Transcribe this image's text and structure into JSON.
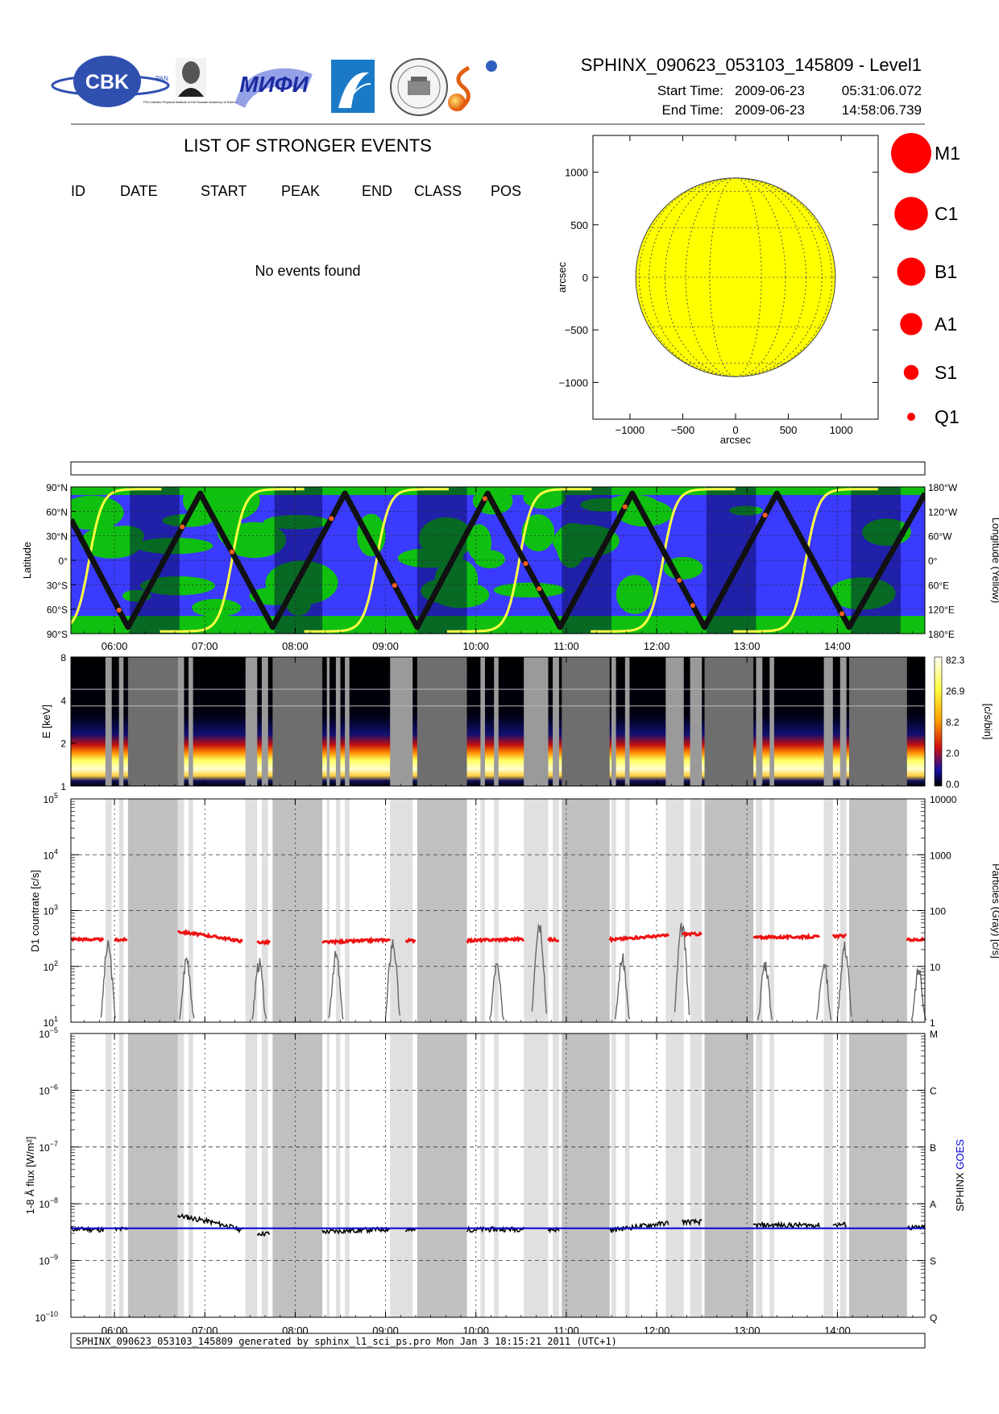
{
  "header": {
    "file_title": "SPHINX_090623_053103_145809 - Level1",
    "start_label": "Start Time:",
    "start_date": "2009-06-23",
    "start_time": "05:31:06.072",
    "end_label": "End Time:",
    "end_date": "2009-06-23",
    "end_time": "14:58:06.739",
    "logos": [
      {
        "icon": "cbk-logo",
        "text": "CBK",
        "small_text": "PAN"
      },
      {
        "icon": "lebedev-portrait-logo",
        "caption": "P.N.Lebedev Physical Institute of the Russian Academy of Science"
      },
      {
        "icon": "mifi-logo",
        "text": "МИФИ"
      },
      {
        "icon": "blue-arc-logo"
      },
      {
        "icon": "seal-logo"
      },
      {
        "icon": "sun-swirl-logo"
      }
    ]
  },
  "events": {
    "title": "LIST OF STRONGER EVENTS",
    "columns": [
      "ID",
      "DATE",
      "START",
      "PEAK",
      "END",
      "CLASS",
      "POS"
    ],
    "rows": [],
    "empty_message": "No events found"
  },
  "solar_disk": {
    "xlabel": "arcsec",
    "ylabel": "arcsec",
    "xticks": [
      -1000,
      -500,
      0,
      500,
      1000
    ],
    "yticks": [
      1000,
      500,
      0,
      -500,
      -1000
    ],
    "xlim": [
      -1350,
      1350
    ],
    "ylim": [
      -1350,
      1350
    ],
    "disk_radius_arcsec": 945,
    "disk_color": "#ffff00",
    "grid": "dotted lat/lon"
  },
  "size_legend": [
    {
      "label": "M1",
      "size": 1.0
    },
    {
      "label": "C1",
      "size": 0.83
    },
    {
      "label": "B1",
      "size": 0.7
    },
    {
      "label": "A1",
      "size": 0.55
    },
    {
      "label": "S1",
      "size": 0.37
    },
    {
      "label": "Q1",
      "size": 0.2
    }
  ],
  "time_axis": {
    "start_hour": 5.518,
    "end_hour": 14.968,
    "ticks": [
      "06:00",
      "07:00",
      "08:00",
      "09:00",
      "10:00",
      "11:00",
      "12:00",
      "13:00",
      "14:00"
    ],
    "tick_hours": [
      6,
      7,
      8,
      9,
      10,
      11,
      12,
      13,
      14
    ]
  },
  "orbit_panel": {
    "ylabel_left": "Latitude",
    "ylabel_right": "Longitude (Yellow)",
    "left_ticks": [
      "90°N",
      "60°N",
      "30°N",
      "0°",
      "30°S",
      "60°S",
      "90°S"
    ],
    "right_ticks": [
      "180°W",
      "120°W",
      "60°W",
      "0°",
      "60°E",
      "120°E",
      "180°E"
    ],
    "colors": {
      "ocean": "#3b3bff",
      "land": "#10c010",
      "night": "#1a1a8a",
      "track": "#111111",
      "longitude": "#ffff44"
    },
    "latitude_turns": [
      {
        "t": 5.52,
        "lat": 50
      },
      {
        "t": 6.15,
        "lat": -82
      },
      {
        "t": 6.95,
        "lat": 82
      },
      {
        "t": 7.75,
        "lat": -82
      },
      {
        "t": 8.55,
        "lat": 82
      },
      {
        "t": 9.35,
        "lat": -82
      },
      {
        "t": 10.13,
        "lat": 82
      },
      {
        "t": 10.93,
        "lat": -82
      },
      {
        "t": 11.73,
        "lat": 82
      },
      {
        "t": 12.53,
        "lat": -82
      },
      {
        "t": 13.33,
        "lat": 82
      },
      {
        "t": 14.13,
        "lat": -82
      },
      {
        "t": 14.97,
        "lat": 82
      }
    ],
    "longitude_wraps": [
      5.72,
      7.3,
      8.9,
      10.48,
      12.07,
      13.65
    ],
    "night_segments": [
      [
        6.17,
        6.72
      ],
      [
        7.77,
        8.3
      ],
      [
        9.35,
        9.9
      ],
      [
        10.95,
        11.5
      ],
      [
        12.55,
        13.1
      ],
      [
        14.15,
        14.7
      ]
    ]
  },
  "spectrogram": {
    "ylabel": "E [keV]",
    "yticks": [
      1,
      2,
      4,
      8
    ],
    "colorbar_label": "[c/s/bin]",
    "colorbar_ticks": [
      "82.3",
      "26.9",
      "8.2",
      "2.0",
      "0.0"
    ],
    "gap_segments_dark": [
      [
        6.15,
        6.7
      ],
      [
        7.75,
        8.3
      ],
      [
        9.35,
        9.9
      ],
      [
        10.95,
        11.48
      ],
      [
        12.53,
        13.07
      ],
      [
        14.13,
        14.77
      ]
    ],
    "gap_segments_light": [
      [
        5.9,
        5.97
      ],
      [
        6.05,
        6.1
      ],
      [
        6.7,
        6.77
      ],
      [
        6.82,
        6.87
      ],
      [
        7.45,
        7.58
      ],
      [
        7.63,
        7.7
      ],
      [
        8.35,
        8.38
      ],
      [
        8.45,
        8.5
      ],
      [
        8.55,
        8.6
      ],
      [
        9.05,
        9.3
      ],
      [
        10.05,
        10.1
      ],
      [
        10.2,
        10.25
      ],
      [
        10.53,
        10.8
      ],
      [
        10.85,
        10.92
      ],
      [
        11.5,
        11.55
      ],
      [
        11.65,
        11.7
      ],
      [
        12.1,
        12.3
      ],
      [
        12.37,
        12.5
      ],
      [
        13.1,
        13.17
      ],
      [
        13.25,
        13.3
      ],
      [
        13.85,
        13.95
      ],
      [
        14.03,
        14.1
      ]
    ]
  },
  "d1_panel": {
    "ylabel_left": "D1 countrate [c/s]",
    "ylabel_right": "Particles (Gray) [c/s]",
    "left_ticks": [
      "10^1",
      "10^2",
      "10^3",
      "10^4",
      "10^5"
    ],
    "left_tick_values": [
      10,
      100,
      1000,
      10000,
      100000
    ],
    "right_ticks": [
      "1",
      "10",
      "100",
      "1000",
      "10000"
    ],
    "ylim": [
      10,
      100000
    ],
    "series_color": "#ee1111",
    "particle_color": "#666666",
    "d1_segments": [
      {
        "t0": 5.52,
        "t1": 5.88,
        "v0": 310,
        "v1": 300
      },
      {
        "t0": 6.0,
        "t1": 6.14,
        "v0": 300,
        "v1": 300
      },
      {
        "t0": 6.7,
        "t1": 7.42,
        "v0": 420,
        "v1": 280
      },
      {
        "t0": 7.58,
        "t1": 7.72,
        "v0": 270,
        "v1": 270
      },
      {
        "t0": 8.3,
        "t1": 9.05,
        "v0": 270,
        "v1": 300
      },
      {
        "t0": 9.22,
        "t1": 9.33,
        "v0": 290,
        "v1": 290
      },
      {
        "t0": 9.9,
        "t1": 10.53,
        "v0": 290,
        "v1": 310
      },
      {
        "t0": 10.8,
        "t1": 10.92,
        "v0": 300,
        "v1": 300
      },
      {
        "t0": 11.48,
        "t1": 12.13,
        "v0": 300,
        "v1": 360
      },
      {
        "t0": 12.28,
        "t1": 12.5,
        "v0": 380,
        "v1": 380
      },
      {
        "t0": 13.07,
        "t1": 13.8,
        "v0": 330,
        "v1": 340
      },
      {
        "t0": 13.95,
        "t1": 14.1,
        "v0": 350,
        "v1": 350
      },
      {
        "t0": 14.77,
        "t1": 14.97,
        "v0": 300,
        "v1": 300
      }
    ],
    "particle_bursts": [
      {
        "t": 5.93,
        "peak": 300
      },
      {
        "t": 6.8,
        "peak": 180
      },
      {
        "t": 7.6,
        "peak": 150
      },
      {
        "t": 8.45,
        "peak": 200
      },
      {
        "t": 9.08,
        "peak": 350
      },
      {
        "t": 10.23,
        "peak": 130
      },
      {
        "t": 10.7,
        "peak": 800
      },
      {
        "t": 11.62,
        "peak": 180
      },
      {
        "t": 12.28,
        "peak": 650
      },
      {
        "t": 13.2,
        "peak": 150
      },
      {
        "t": 13.85,
        "peak": 160
      },
      {
        "t": 14.08,
        "peak": 300
      },
      {
        "t": 14.9,
        "peak": 110
      }
    ]
  },
  "flux_panel": {
    "ylabel_left": "1-8 Å flux [W/m²]",
    "ylabel_right_1": "SPHINX",
    "ylabel_right_2": "GOES",
    "left_ticks": [
      "10^-10",
      "10^-9",
      "10^-8",
      "10^-7",
      "10^-6",
      "10^-5"
    ],
    "left_tick_values": [
      1e-10,
      1e-09,
      1e-08,
      1e-07,
      1e-06,
      1e-05
    ],
    "right_ticks": [
      "Q",
      "S",
      "A",
      "B",
      "C",
      "M"
    ],
    "ylim": [
      1e-10,
      1e-05
    ],
    "goes_level": 3.7e-09,
    "goes_color": "#0000dd",
    "sphinx_color": "#000000",
    "sphinx_segments": [
      {
        "t0": 5.52,
        "t1": 5.88,
        "v0": 3.6e-09,
        "v1": 3.5e-09
      },
      {
        "t0": 6.0,
        "t1": 6.14,
        "v0": 3.5e-09,
        "v1": 3.6e-09
      },
      {
        "t0": 6.7,
        "t1": 7.42,
        "v0": 6.2e-09,
        "v1": 3.4e-09
      },
      {
        "t0": 7.58,
        "t1": 7.72,
        "v0": 3e-09,
        "v1": 3e-09
      },
      {
        "t0": 8.3,
        "t1": 9.05,
        "v0": 3.2e-09,
        "v1": 3.6e-09
      },
      {
        "t0": 9.22,
        "t1": 9.33,
        "v0": 3.4e-09,
        "v1": 3.4e-09
      },
      {
        "t0": 9.9,
        "t1": 10.53,
        "v0": 3.5e-09,
        "v1": 3.6e-09
      },
      {
        "t0": 10.8,
        "t1": 10.92,
        "v0": 3.5e-09,
        "v1": 3.5e-09
      },
      {
        "t0": 11.48,
        "t1": 12.13,
        "v0": 3.4e-09,
        "v1": 4.6e-09
      },
      {
        "t0": 12.28,
        "t1": 12.5,
        "v0": 4.8e-09,
        "v1": 4.8e-09
      },
      {
        "t0": 13.07,
        "t1": 13.8,
        "v0": 4.2e-09,
        "v1": 4.2e-09
      },
      {
        "t0": 13.95,
        "t1": 14.1,
        "v0": 4.3e-09,
        "v1": 4.3e-09
      },
      {
        "t0": 14.77,
        "t1": 14.97,
        "v0": 3.8e-09,
        "v1": 3.8e-09
      }
    ]
  },
  "footer": {
    "text": "SPHINX_090623_053103_145809 generated by sphinx_l1_sci_ps.pro Mon Jan  3 18:15:21 2011 (UTC+1)"
  }
}
